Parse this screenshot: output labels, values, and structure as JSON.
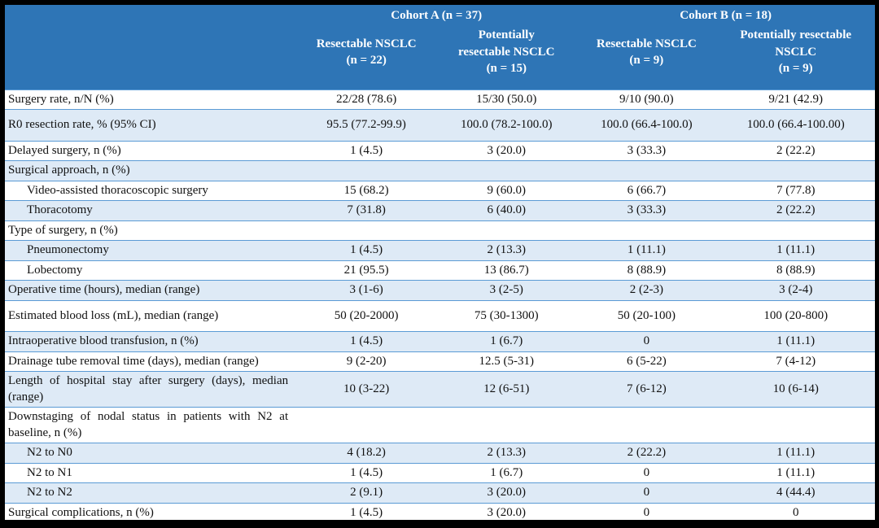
{
  "table": {
    "colors": {
      "header_bg": "#2E75B6",
      "alt_row_bg": "#DEEAF6",
      "border_blue": "#5B9BD5",
      "frame_black": "#000000",
      "header_text": "#FFFFFF",
      "body_text": "#111111"
    },
    "cohort_headers": [
      {
        "label": "Cohort A (n = 37)"
      },
      {
        "label": "Cohort B (n = 18)"
      }
    ],
    "column_headers": [
      {
        "lines": [
          "Resectable NSCLC",
          "(n = 22)"
        ]
      },
      {
        "lines": [
          "Potentially",
          "resectable NSCLC",
          "(n = 15)"
        ]
      },
      {
        "lines": [
          "Resectable NSCLC",
          "(n = 9)"
        ]
      },
      {
        "lines": [
          "Potentially resectable",
          "NSCLC",
          "(n = 9)"
        ]
      }
    ],
    "rows": [
      {
        "label": "Surgery rate, n/N (%)",
        "values": [
          "22/28 (78.6)",
          "15/30 (50.0)",
          "9/10 (90.0)",
          "9/21 (42.9)"
        ],
        "indent": false,
        "tall": false
      },
      {
        "label": "R0 resection rate, % (95% CI)",
        "values": [
          "95.5 (77.2-99.9)",
          "100.0 (78.2-100.0)",
          "100.0 (66.4-100.0)",
          "100.0 (66.4-100.00)"
        ],
        "indent": false,
        "tall": true
      },
      {
        "label": "Delayed surgery, n (%)",
        "values": [
          "1 (4.5)",
          "3 (20.0)",
          "3 (33.3)",
          "2 (22.2)"
        ],
        "indent": false,
        "tall": false
      },
      {
        "label": "Surgical approach, n (%)",
        "values": [
          "",
          "",
          "",
          ""
        ],
        "indent": false,
        "tall": false
      },
      {
        "label": "Video-assisted thoracoscopic surgery",
        "values": [
          "15 (68.2)",
          "9 (60.0)",
          "6 (66.7)",
          "7 (77.8)"
        ],
        "indent": true,
        "tall": false
      },
      {
        "label": "Thoracotomy",
        "values": [
          "7 (31.8)",
          "6 (40.0)",
          "3 (33.3)",
          "2 (22.2)"
        ],
        "indent": true,
        "tall": false
      },
      {
        "label": "Type of surgery, n (%)",
        "values": [
          "",
          "",
          "",
          ""
        ],
        "indent": false,
        "tall": false
      },
      {
        "label": "Pneumonectomy",
        "values": [
          "1 (4.5)",
          "2 (13.3)",
          "1 (11.1)",
          "1 (11.1)"
        ],
        "indent": true,
        "tall": false
      },
      {
        "label": "Lobectomy",
        "values": [
          "21 (95.5)",
          "13 (86.7)",
          "8 (88.9)",
          "8 (88.9)"
        ],
        "indent": true,
        "tall": false
      },
      {
        "label": "Operative time (hours), median (range)",
        "values": [
          "3 (1-6)",
          "3 (2-5)",
          "2 (2-3)",
          "3 (2-4)"
        ],
        "indent": false,
        "tall": false
      },
      {
        "label": "Estimated blood loss (mL), median (range)",
        "values": [
          "50 (20-2000)",
          "75 (30-1300)",
          "50 (20-100)",
          "100 (20-800)"
        ],
        "indent": false,
        "tall": true
      },
      {
        "label": "Intraoperative blood transfusion, n (%)",
        "values": [
          "1 (4.5)",
          "1 (6.7)",
          "0",
          "1 (11.1)"
        ],
        "indent": false,
        "tall": false
      },
      {
        "label": "Drainage tube removal time (days), median (range)",
        "values": [
          "9 (2-20)",
          "12.5 (5-31)",
          "6 (5-22)",
          "7 (4-12)"
        ],
        "indent": false,
        "tall": false
      },
      {
        "label": "Length of hospital stay after surgery (days), median (range)",
        "values": [
          "10 (3-22)",
          "12 (6-51)",
          "7 (6-12)",
          "10 (6-14)"
        ],
        "indent": false,
        "tall": false
      },
      {
        "label": "Downstaging of nodal status in patients with N2 at baseline, n (%)",
        "values": [
          "",
          "",
          "",
          ""
        ],
        "indent": false,
        "tall": false
      },
      {
        "label": "N2 to N0",
        "values": [
          "4 (18.2)",
          "2 (13.3)",
          "2 (22.2)",
          "1 (11.1)"
        ],
        "indent": true,
        "tall": false
      },
      {
        "label": "N2 to N1",
        "values": [
          "1 (4.5)",
          "1 (6.7)",
          "0",
          "1 (11.1)"
        ],
        "indent": true,
        "tall": false
      },
      {
        "label": "N2 to N2",
        "values": [
          "2 (9.1)",
          "3 (20.0)",
          "0",
          "4 (44.4)"
        ],
        "indent": true,
        "tall": false
      },
      {
        "label": "Surgical complications, n (%)",
        "values": [
          "1 (4.5)",
          "3 (20.0)",
          "0",
          "0"
        ],
        "indent": false,
        "tall": false
      }
    ]
  }
}
